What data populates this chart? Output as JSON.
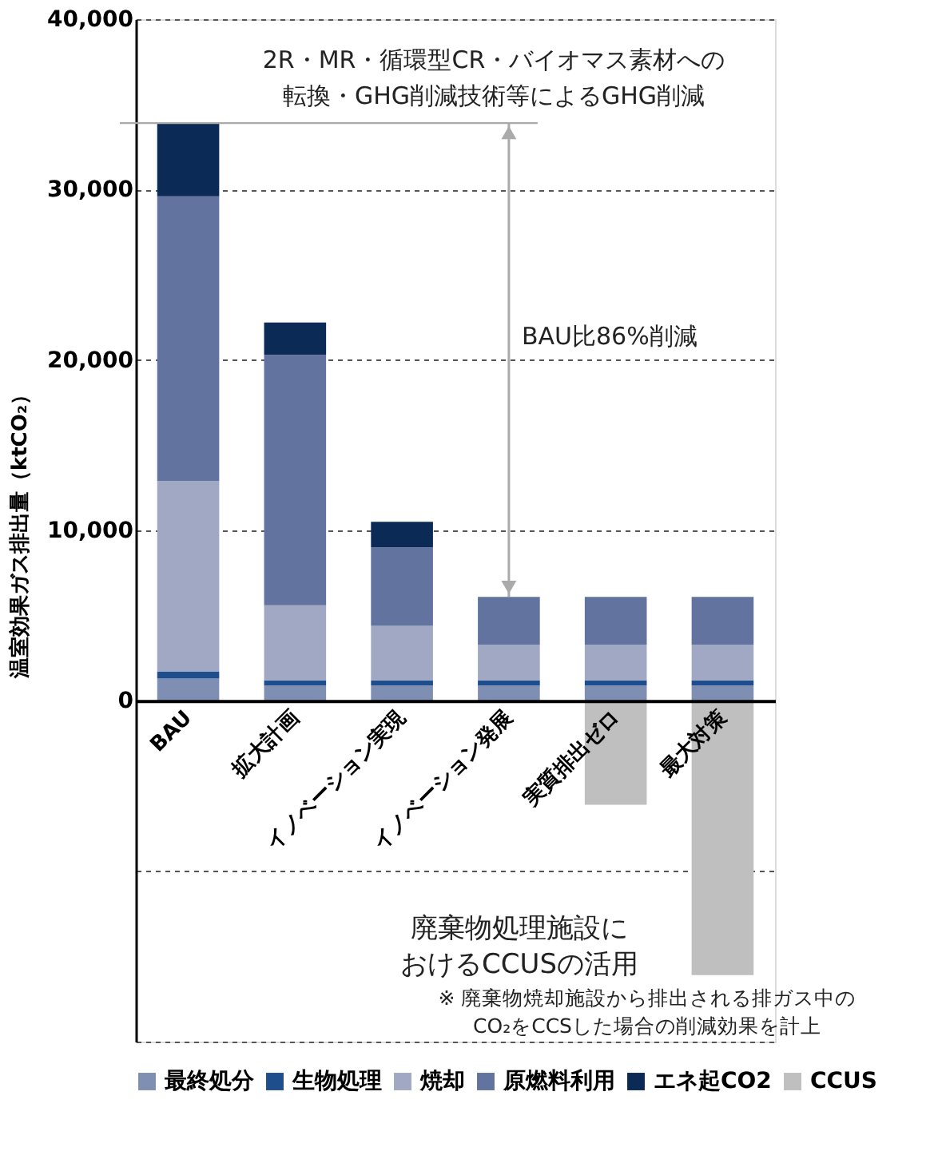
{
  "chart_data": {
    "type": "bar",
    "stacked": true,
    "ylabel": "温室効果ガス排出量（ktCO₂）",
    "categories": [
      "BAU",
      "拡大計画",
      "イノベーション実現",
      "イノベーション発展",
      "実質排出ゼロ",
      "最大対策"
    ],
    "series": [
      {
        "name": "最終処分",
        "color": "#7f8fb3",
        "values": [
          1300,
          900,
          900,
          900,
          900,
          900
        ]
      },
      {
        "name": "生物処理",
        "color": "#1f4e8c",
        "values": [
          400,
          300,
          300,
          300,
          300,
          300
        ]
      },
      {
        "name": "焼却",
        "color": "#a0a8c4",
        "values": [
          11200,
          4400,
          3200,
          2100,
          2100,
          2100
        ]
      },
      {
        "name": "原燃料利用",
        "color": "#61739e",
        "values": [
          16700,
          14700,
          4600,
          2800,
          2800,
          2800
        ]
      },
      {
        "name": "エネ起CO2",
        "color": "#0b2a55",
        "values": [
          4300,
          1900,
          1500,
          0,
          0,
          0
        ]
      },
      {
        "name": "CCUS",
        "color": "#bfbfbf",
        "values": [
          0,
          0,
          0,
          0,
          -6100,
          -16100
        ]
      }
    ],
    "ylim": [
      -20000,
      40000
    ],
    "yticks": [
      {
        "value": -20000,
        "label": null
      },
      {
        "value": -10000,
        "label": null
      },
      {
        "value": 0,
        "label": "0"
      },
      {
        "value": 10000,
        "label": "10,000"
      },
      {
        "value": 20000,
        "label": "20,000"
      },
      {
        "value": 30000,
        "label": "30,000"
      },
      {
        "value": 40000,
        "label": "40,000"
      }
    ],
    "grid": "y",
    "legend": "bottom",
    "annotations": [
      "2R・MR・循環型CR・バイオマス素材への",
      "転換・GHG削減技術等によるGHG削減",
      "BAU比86%削減",
      "廃棄物処理施設に",
      "おけるCCUSの活用",
      "※ 廃棄物焼却施設から排出される排ガス中の",
      "CO₂をCCSした場合の削減効果を計上"
    ]
  }
}
